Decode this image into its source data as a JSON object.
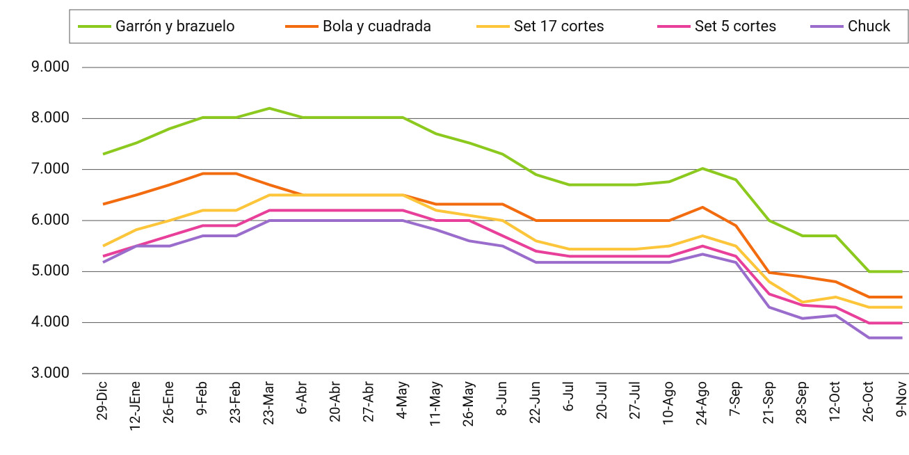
{
  "chart_data": {
    "type": "line",
    "categories": [
      "29-Dic",
      "12-JEne",
      "26-Ene",
      "9-Feb",
      "23-Feb",
      "23-Mar",
      "6-Abr",
      "20-Abr",
      "27-Abr",
      "4-May",
      "11-May",
      "26-May",
      "8-Jun",
      "22-Jun",
      "6-Jul",
      "20-Jul",
      "27-Jul",
      "10-Ago",
      "24-Ago",
      "7-Sep",
      "21-Sep",
      "28-Sep",
      "12-Oct",
      "26-Oct",
      "9-Nov"
    ],
    "series": [
      {
        "name": "Garrón y brazuelo",
        "color": "#8cc91e",
        "values": [
          7300,
          7520,
          7800,
          8020,
          8020,
          8200,
          8020,
          8020,
          8020,
          8020,
          7700,
          7520,
          7300,
          6900,
          6700,
          6700,
          6700,
          6760,
          7020,
          6800,
          6000,
          5700,
          5700,
          5000,
          5000
        ]
      },
      {
        "name": "Bola y cuadrada",
        "color": "#f26b0f",
        "values": [
          6320,
          6500,
          6700,
          6920,
          6920,
          6700,
          6500,
          6500,
          6500,
          6500,
          6320,
          6320,
          6320,
          6000,
          6000,
          6000,
          6000,
          6000,
          6260,
          5900,
          4980,
          4900,
          4800,
          4500,
          4500
        ]
      },
      {
        "name": "Set 17 cortes",
        "color": "#fcc53a",
        "values": [
          5500,
          5820,
          6000,
          6200,
          6200,
          6500,
          6500,
          6500,
          6500,
          6500,
          6200,
          6100,
          6000,
          5600,
          5440,
          5440,
          5440,
          5500,
          5700,
          5500,
          4800,
          4400,
          4500,
          4300,
          4300
        ]
      },
      {
        "name": "Set 5 cortes",
        "color": "#e8409a",
        "values": [
          5300,
          5500,
          5700,
          5900,
          5900,
          6200,
          6200,
          6200,
          6200,
          6200,
          6000,
          6000,
          5700,
          5400,
          5300,
          5300,
          5300,
          5300,
          5500,
          5300,
          4560,
          4340,
          4300,
          3990,
          3990
        ]
      },
      {
        "name": "Chuck",
        "color": "#9a6ccc",
        "values": [
          5180,
          5500,
          5500,
          5700,
          5700,
          6000,
          6000,
          6000,
          6000,
          6000,
          5820,
          5600,
          5500,
          5180,
          5180,
          5180,
          5180,
          5180,
          5340,
          5180,
          4300,
          4080,
          4140,
          3700,
          3700
        ]
      }
    ],
    "ylim": [
      3000,
      9000
    ],
    "yticks": [
      {
        "value": 3000,
        "label": "3.000"
      },
      {
        "value": 4000,
        "label": "4.000"
      },
      {
        "value": 5000,
        "label": "5.000"
      },
      {
        "value": 6000,
        "label": "6.000"
      },
      {
        "value": 7000,
        "label": "7.000"
      },
      {
        "value": 8000,
        "label": "8.000"
      },
      {
        "value": 9000,
        "label": "9.000"
      }
    ],
    "grid": true,
    "legend": "top"
  }
}
